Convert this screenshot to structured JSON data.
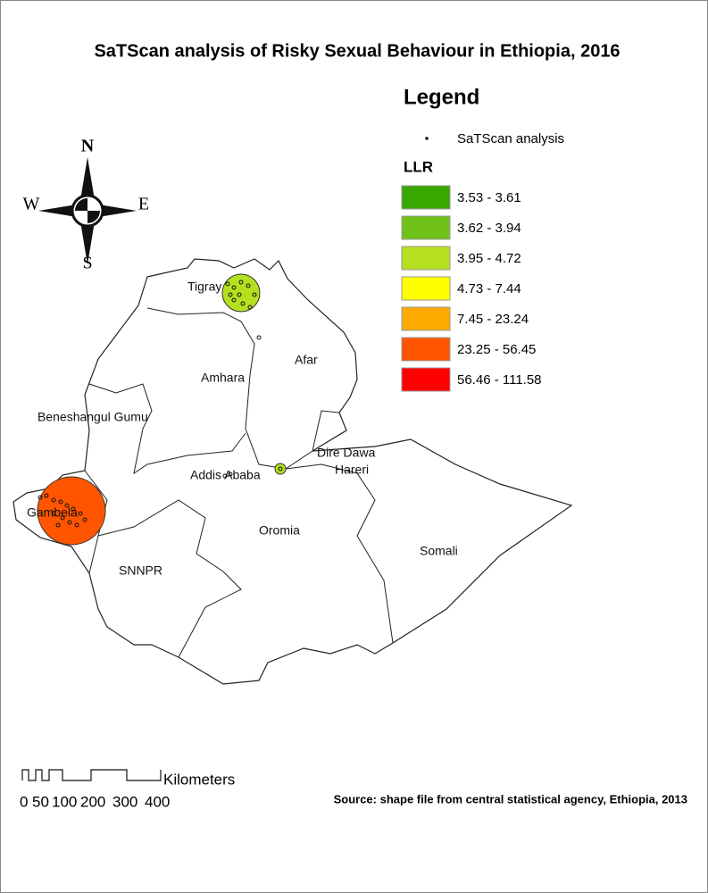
{
  "title": "SaTScan analysis of Risky Sexual Behaviour in Ethiopia, 2016",
  "legend": {
    "title": "Legend",
    "point_label": "SaTScan analysis",
    "llr_title": "LLR",
    "classes": [
      {
        "label": "3.53 - 3.61",
        "color": "#38a800"
      },
      {
        "label": "3.62 - 3.94",
        "color": "#70c21a"
      },
      {
        "label": "3.95 - 4.72",
        "color": "#b4e01e"
      },
      {
        "label": "4.73 - 7.44",
        "color": "#ffff00"
      },
      {
        "label": "7.45 - 23.24",
        "color": "#ffaa00"
      },
      {
        "label": "23.25 - 56.45",
        "color": "#ff5500"
      },
      {
        "label": "56.46 - 111.58",
        "color": "#ff0000"
      }
    ]
  },
  "compass": {
    "n": "N",
    "s": "S",
    "e": "E",
    "w": "W"
  },
  "regions": [
    "Tigray",
    "Afar",
    "Amhara",
    "Beneshangul Gumu",
    "Addis Ababa",
    "Dire Dawa",
    "Hareri",
    "Gambela",
    "Oromia",
    "Somali",
    "SNNPR"
  ],
  "scale_bar": {
    "unit": "Kilometers",
    "ticks": [
      "0",
      "50",
      "100",
      "200",
      "300",
      "400"
    ]
  },
  "source": "Source: shape file from central statistical agency, Ethiopia, 2013"
}
